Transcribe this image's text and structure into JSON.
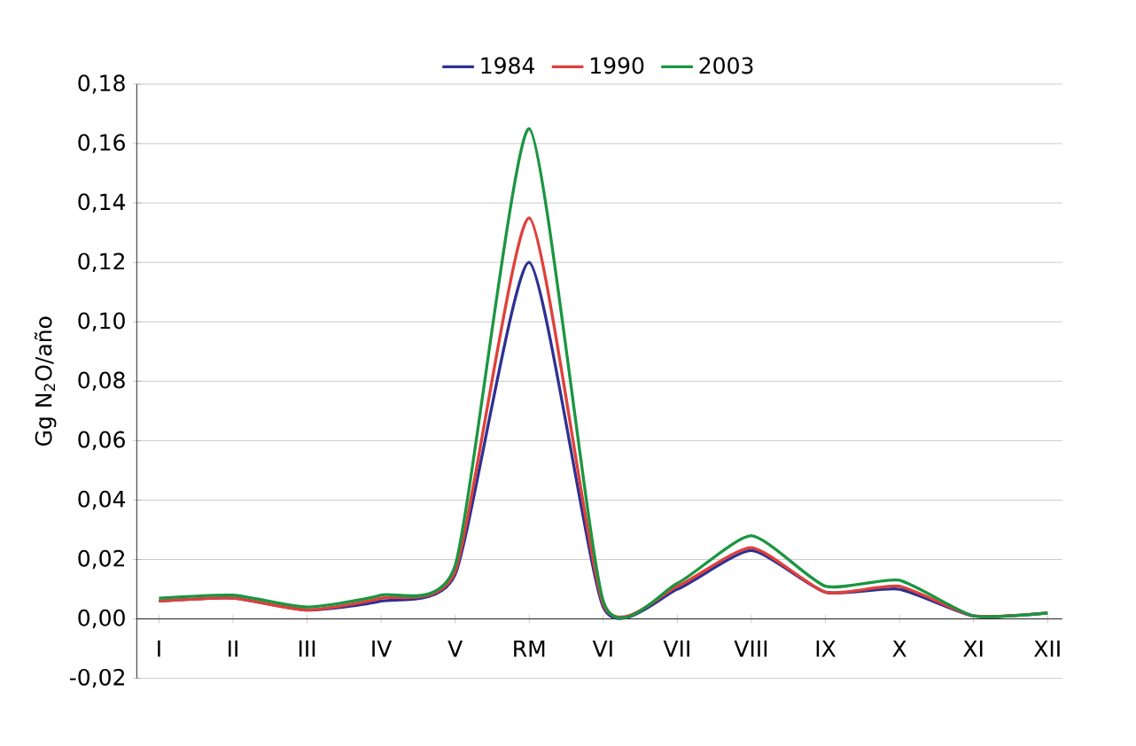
{
  "chart_data": {
    "type": "line",
    "ylabel": "Gg N$_{2}$O/año",
    "categories": [
      "I",
      "II",
      "III",
      "IV",
      "V",
      "RM",
      "VI",
      "VII",
      "VIII",
      "IX",
      "X",
      "XI",
      "XII"
    ],
    "series": [
      {
        "name": "1984",
        "color": "#2e3192",
        "values": [
          0.006,
          0.007,
          0.003,
          0.006,
          0.015,
          0.12,
          0.004,
          0.01,
          0.023,
          0.009,
          0.01,
          0.001,
          0.002
        ]
      },
      {
        "name": "1990",
        "color": "#e0403a",
        "values": [
          0.006,
          0.007,
          0.003,
          0.007,
          0.016,
          0.135,
          0.005,
          0.011,
          0.024,
          0.009,
          0.011,
          0.001,
          0.002
        ]
      },
      {
        "name": "2003",
        "color": "#1a9641",
        "values": [
          0.007,
          0.008,
          0.004,
          0.008,
          0.018,
          0.165,
          0.006,
          0.012,
          0.028,
          0.011,
          0.013,
          0.001,
          0.002
        ]
      }
    ],
    "ylim": [
      -0.02,
      0.18
    ],
    "yticks": [
      {
        "value": -0.02,
        "label": "-0,02"
      },
      {
        "value": 0,
        "label": "0,00"
      },
      {
        "value": 0.02,
        "label": "0,02"
      },
      {
        "value": 0.04,
        "label": "0,04"
      },
      {
        "value": 0.06,
        "label": "0,06"
      },
      {
        "value": 0.08,
        "label": "0,08"
      },
      {
        "value": 0.1,
        "label": "0,10"
      },
      {
        "value": 0.12,
        "label": "0,12"
      },
      {
        "value": 0.14,
        "label": "0,14"
      },
      {
        "value": 0.16,
        "label": "0,16"
      },
      {
        "value": 0.18,
        "label": "0,18"
      }
    ],
    "grid": "y",
    "legend": "top",
    "marker": "none",
    "line_style": "solid"
  }
}
